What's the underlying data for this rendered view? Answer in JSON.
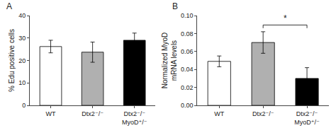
{
  "chart_data": [
    {
      "type": "bar",
      "title": "A",
      "categories": [
        "WT",
        "Dtx2⁻/⁻",
        "Dtx2⁻/⁻\nMyoD⁺/⁻"
      ],
      "values": [
        26.2,
        23.7,
        29.0
      ],
      "errors": [
        2.8,
        4.5,
        3.2
      ],
      "colors": [
        "white",
        "#b0b0b0",
        "black"
      ],
      "ylabel": "% Edu positive cells",
      "ylim": [
        0,
        40
      ],
      "yticks": [
        0,
        10,
        20,
        30,
        40
      ],
      "grid": false
    },
    {
      "type": "bar",
      "title": "B",
      "categories": [
        "WT",
        "Dtx2⁻/⁻",
        "Dtx2⁻/⁻\nMyoD⁺/⁻"
      ],
      "values": [
        0.049,
        0.07,
        0.03
      ],
      "errors": [
        0.006,
        0.012,
        0.012
      ],
      "colors": [
        "white",
        "#b0b0b0",
        "black"
      ],
      "ylabel": "Normalized MyoD\nmRNA levels",
      "ylim": [
        0,
        0.1
      ],
      "yticks": [
        {
          "value": 0,
          "label": "0.00"
        },
        0.02,
        0.04,
        0.06,
        0.08,
        {
          "value": 0.1,
          "label": "0.10"
        }
      ],
      "grid": false,
      "annotations": [
        {
          "text": "*",
          "categories": [
            "Dtx2⁻/⁻",
            "Dtx2⁻/⁻\nMyoD⁺/⁻"
          ]
        }
      ]
    }
  ]
}
